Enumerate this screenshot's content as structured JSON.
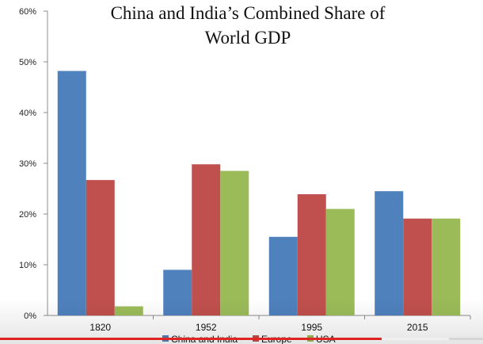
{
  "chart_data": {
    "type": "bar",
    "title_lines": [
      "China and India’s Combined Share of",
      "World GDP"
    ],
    "categories": [
      "1820",
      "1952",
      "1995",
      "2015"
    ],
    "series": [
      {
        "name": "China and India",
        "color": "#4f81bd",
        "values": [
          48.2,
          9.0,
          15.5,
          24.5
        ]
      },
      {
        "name": "Europe",
        "color": "#c0504d",
        "values": [
          26.7,
          29.8,
          23.9,
          19.1
        ]
      },
      {
        "name": "USA",
        "color": "#9bbb59",
        "values": [
          1.8,
          28.5,
          21.0,
          19.1
        ]
      }
    ],
    "yticks": [
      "0%",
      "10%",
      "20%",
      "30%",
      "40%",
      "50%",
      "60%"
    ],
    "ylim": [
      0,
      60
    ],
    "grid": false,
    "legend_position": "bottom"
  },
  "player": {
    "progress_played": 0.79,
    "progress_buffered": 0.93
  }
}
